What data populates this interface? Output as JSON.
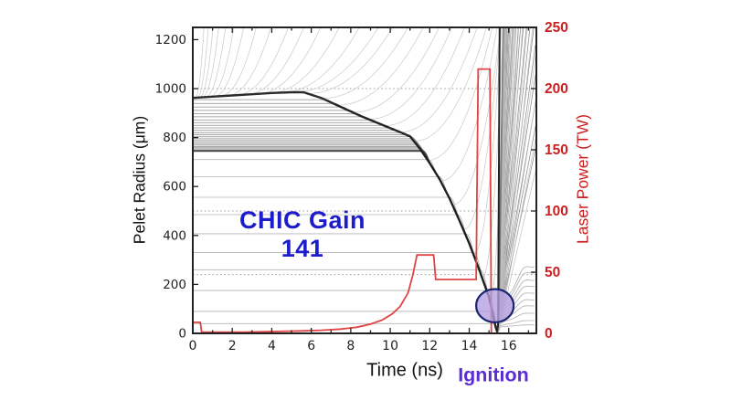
{
  "page": {
    "background": "#ffffff"
  },
  "annotations": {
    "gain_label_line1": "CHIC Gain",
    "gain_label_line2": "141",
    "gain_color": "#1c1ccc",
    "ignition_label": "Ignition",
    "ignition_color": "#5c2dd6"
  },
  "chart_data": {
    "type": "line",
    "title": "",
    "xlabel": "Time (ns)",
    "ylabel_left": "Pelet Radius (μm)",
    "ylabel_right": "Laser Power (TW)",
    "xlim": [
      0,
      17.4
    ],
    "ylim_left": [
      0,
      1250
    ],
    "ylim_right": [
      0,
      250
    ],
    "x_ticks": [
      0,
      2,
      4,
      6,
      8,
      10,
      12,
      14,
      16
    ],
    "x_minor_ticks": [
      1,
      3,
      5,
      7,
      9,
      11,
      13,
      15,
      17
    ],
    "y_ticks_left": [
      0,
      200,
      400,
      600,
      800,
      1000,
      1200
    ],
    "y_ticks_right": [
      0,
      50,
      100,
      150,
      200,
      250
    ],
    "grid_dotted_radii_um": [
      1000,
      500,
      240
    ],
    "axis_color": "#222222",
    "left_tick_color": "#222222",
    "right_tick_color": "#cc2020",
    "laser_pulse": {
      "color": "#e04444",
      "units": [
        "ns",
        "TW"
      ],
      "points": [
        [
          0,
          9
        ],
        [
          0.38,
          9
        ],
        [
          0.45,
          1
        ],
        [
          2.6,
          1
        ],
        [
          4,
          1.5
        ],
        [
          5.5,
          2
        ],
        [
          6.5,
          2.5
        ],
        [
          7.5,
          3.5
        ],
        [
          8.3,
          5
        ],
        [
          9,
          7.5
        ],
        [
          9.6,
          11
        ],
        [
          10.1,
          16
        ],
        [
          10.5,
          22
        ],
        [
          10.9,
          33
        ],
        [
          11.15,
          48
        ],
        [
          11.35,
          64
        ],
        [
          12.2,
          64
        ],
        [
          12.3,
          44
        ],
        [
          14.35,
          44
        ],
        [
          14.45,
          216
        ],
        [
          15.05,
          216
        ],
        [
          15.12,
          0
        ],
        [
          17.4,
          0
        ]
      ]
    },
    "shell_trajectory": {
      "color": "#1a1a1a",
      "units": [
        "ns",
        "μm"
      ],
      "points": [
        [
          0,
          962
        ],
        [
          1,
          967
        ],
        [
          2,
          972
        ],
        [
          3,
          977
        ],
        [
          4,
          982
        ],
        [
          5,
          985
        ],
        [
          5.6,
          985
        ],
        [
          6.5,
          962
        ],
        [
          7.5,
          925
        ],
        [
          8.5,
          888
        ],
        [
          9.5,
          855
        ],
        [
          10.5,
          822
        ],
        [
          11,
          805
        ],
        [
          11.5,
          755
        ],
        [
          12,
          695
        ],
        [
          12.5,
          630
        ],
        [
          13,
          552
        ],
        [
          13.5,
          462
        ],
        [
          14,
          368
        ],
        [
          14.5,
          262
        ],
        [
          15,
          148
        ],
        [
          15.35,
          22
        ]
      ]
    },
    "stagnation": {
      "time_ns": 15.35,
      "radius_min_um": 22,
      "reexpansion_line_time_ns": 15.46
    },
    "fuel_zone_radii_um": [
      40,
      90,
      175,
      260,
      330,
      407,
      485,
      556,
      640,
      710
    ],
    "shell_band": {
      "r_min_um": 745,
      "r_max_um": 955,
      "lines": 24,
      "color": "#787878"
    },
    "interface_line": {
      "radius_um": 745,
      "color": "#3a3a3a"
    },
    "blowoff_fan": {
      "lines": 30,
      "color": "#c9c9c9"
    },
    "reexpansion_fan": {
      "lines": 16,
      "color": "#bfbfbf"
    },
    "zone_line_color": "#b3b3b3",
    "ignition_marker": {
      "t_ns": 15.3,
      "radius_um": 113,
      "rx_ns": 0.95,
      "ry_um": 68,
      "fill": "#b49de0",
      "stroke": "#1b2470"
    }
  }
}
